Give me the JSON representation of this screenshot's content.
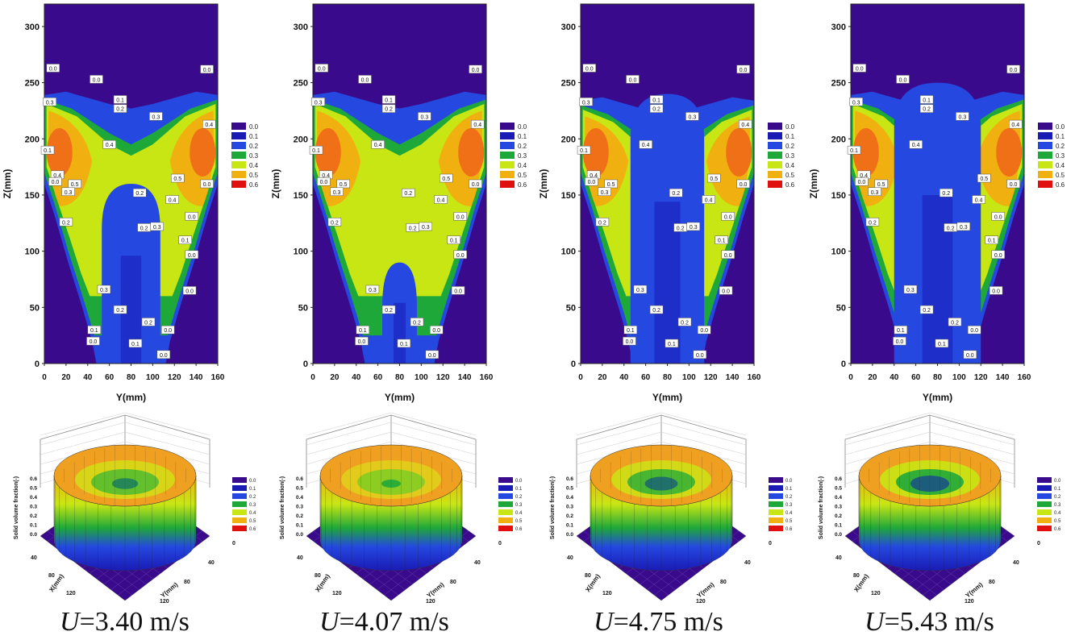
{
  "contour_panels": {
    "y_axis_label": "Z(mm)",
    "x_axis_label": "Y(mm)",
    "y_ticks": [
      "0",
      "50",
      "100",
      "150",
      "200",
      "250",
      "300"
    ],
    "x_ticks": [
      "0",
      "20",
      "40",
      "60",
      "80",
      "100",
      "120",
      "140",
      "160"
    ],
    "legend_levels": [
      "0.0",
      "0.1",
      "0.2",
      "0.3",
      "0.4",
      "0.5",
      "0.6"
    ]
  },
  "surface_panels": {
    "z_axis_label": "Solid volume fraction(-)",
    "z_ticks": [
      "0.0",
      "0.1",
      "0.2",
      "0.3",
      "0.4",
      "0.5",
      "0.6"
    ],
    "x_axis_label": "X(mm)",
    "y_axis_label": "Y(mm)",
    "x_ticks": [
      "40",
      "80",
      "120"
    ],
    "y_ticks": [
      "0",
      "40",
      "80",
      "120"
    ],
    "legend_levels": [
      "0.0",
      "0.1",
      "0.2",
      "0.3",
      "0.4",
      "0.5",
      "0.6"
    ]
  },
  "colors": {
    "0.0": "#3a0a8c",
    "0.1": "#1a1ab4",
    "0.2": "#2448e0",
    "0.3": "#1fa83a",
    "0.4": "#c8e614",
    "0.5": "#f0b010",
    "0.6": "#e01010"
  },
  "chart_data": [
    {
      "type": "heatmap",
      "title": "U=3.40 m/s",
      "caption_symbol": "U",
      "caption_value": "=3.40 m/s",
      "xlabel": "Y(mm)",
      "ylabel": "Z(mm)",
      "xlim": [
        0,
        160
      ],
      "ylim": [
        0,
        320
      ],
      "bed_height": 245,
      "core_width": 27,
      "core_top": 160,
      "peak_value": 0.55,
      "grid": false,
      "legend": "right"
    },
    {
      "type": "heatmap",
      "title": "U=4.07 m/s",
      "caption_symbol": "U",
      "caption_value": "=4.07 m/s",
      "xlabel": "Y(mm)",
      "ylabel": "Z(mm)",
      "xlim": [
        0,
        160
      ],
      "ylim": [
        0,
        320
      ],
      "bed_height": 245,
      "core_width": 16,
      "core_top": 90,
      "peak_value": 0.55,
      "grid": false,
      "legend": "right"
    },
    {
      "type": "heatmap",
      "title": "U=4.75 m/s",
      "caption_symbol": "U",
      "caption_value": "=4.75 m/s",
      "xlabel": "Y(mm)",
      "ylabel": "Z(mm)",
      "xlim": [
        0,
        160
      ],
      "ylim": [
        0,
        320
      ],
      "bed_height": 240,
      "core_width": 34,
      "core_top": 240,
      "peak_value": 0.55,
      "grid": false,
      "legend": "right"
    },
    {
      "type": "heatmap",
      "title": "U=5.43 m/s",
      "caption_symbol": "U",
      "caption_value": "=5.43 m/s",
      "xlabel": "Y(mm)",
      "ylabel": "Z(mm)",
      "xlim": [
        0,
        160
      ],
      "ylim": [
        0,
        320
      ],
      "bed_height": 245,
      "core_width": 40,
      "core_top": 250,
      "peak_value": 0.55,
      "grid": false,
      "legend": "right"
    }
  ]
}
